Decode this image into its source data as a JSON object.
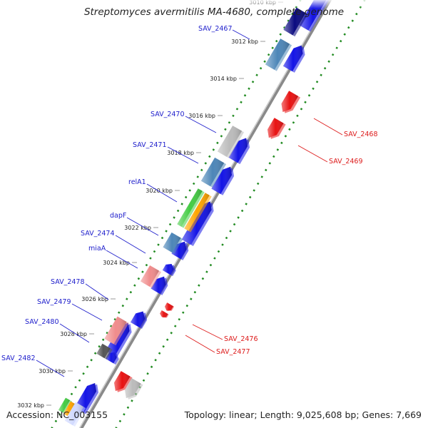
{
  "title": "Streptomyces avermitilis MA-4680, complete genome",
  "footer": {
    "accession": "Accession: NC_003155",
    "summary": "Topology: linear; Length: 9,025,608 bp; Genes: 7,669"
  },
  "colors": {
    "backbone": "#8a8a8a",
    "forward_label": "#2020cc",
    "reverse_label": "#dd1a1a",
    "tick_dots": "#228b22",
    "gene_blue": "#1414e6",
    "gene_red": "#e81212",
    "steel_blue": "#4d86b8",
    "navy": "#0b0b80",
    "grey": "#bbbbbb",
    "pink": "#f08c8c",
    "green": "#44cc44",
    "orange": "#ffa500"
  },
  "ruler": [
    "3010 kbp",
    "3012 kbp",
    "3014 kbp",
    "3016 kbp",
    "3018 kbp",
    "3020 kbp",
    "3022 kbp",
    "3024 kbp",
    "3026 kbp",
    "3028 kbp",
    "3030 kbp",
    "3032 kbp"
  ],
  "labels": [
    {
      "text": "SAV_2467",
      "strand": "forward"
    },
    {
      "text": "SAV_2468",
      "strand": "reverse"
    },
    {
      "text": "SAV_2469",
      "strand": "reverse"
    },
    {
      "text": "SAV_2470",
      "strand": "forward"
    },
    {
      "text": "SAV_2471",
      "strand": "forward"
    },
    {
      "text": "relA1",
      "strand": "forward"
    },
    {
      "text": "dapF",
      "strand": "forward"
    },
    {
      "text": "SAV_2474",
      "strand": "forward"
    },
    {
      "text": "miaA",
      "strand": "forward"
    },
    {
      "text": "SAV_2476",
      "strand": "reverse"
    },
    {
      "text": "SAV_2477",
      "strand": "reverse"
    },
    {
      "text": "SAV_2478",
      "strand": "forward"
    },
    {
      "text": "SAV_2479",
      "strand": "forward"
    },
    {
      "text": "SAV_2480",
      "strand": "forward"
    },
    {
      "text": "SAV_2482",
      "strand": "forward"
    }
  ]
}
